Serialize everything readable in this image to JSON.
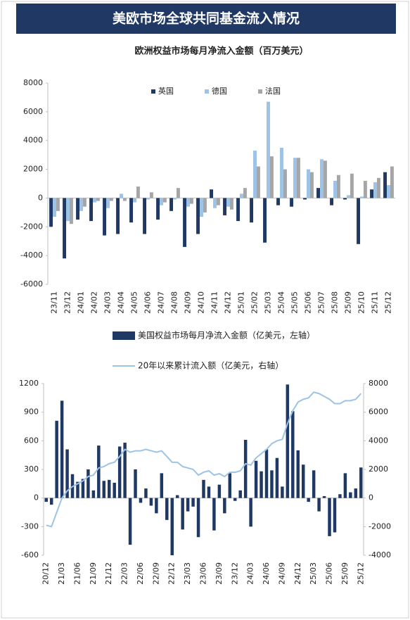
{
  "header": {
    "title": "美欧市场全球共同基金流入情况"
  },
  "chart_data": [
    {
      "type": "bar",
      "title": "欧洲权益市场每月净流入金额（百万美元）",
      "categories": [
        "23/11",
        "23/12",
        "24/01",
        "24/02",
        "24/03",
        "24/04",
        "24/05",
        "24/06",
        "24/07",
        "24/08",
        "24/09",
        "24/10",
        "24/11",
        "24/12",
        "25/01",
        "25/02",
        "25/03",
        "25/04",
        "25/05",
        "25/06",
        "25/07",
        "25/08",
        "25/09",
        "25/10",
        "25/11",
        "25/12"
      ],
      "series": [
        {
          "name": "英国",
          "color": "#1f3864",
          "values": [
            -2000,
            -4200,
            -1500,
            -1600,
            -2600,
            -2500,
            -1700,
            -2500,
            -1500,
            -900,
            -3400,
            -2500,
            600,
            -1200,
            -1600,
            -1700,
            -3100,
            -500,
            -600,
            -100,
            700,
            -500,
            -100,
            -3200,
            600,
            1800
          ]
        },
        {
          "name": "德国",
          "color": "#9dc3e6",
          "values": [
            -1300,
            -1600,
            -900,
            -300,
            -700,
            300,
            -300,
            -100,
            -500,
            -100,
            -600,
            -1300,
            -700,
            -600,
            300,
            3300,
            6700,
            3500,
            2800,
            2000,
            2700,
            1200,
            200,
            100,
            1100,
            900
          ]
        },
        {
          "name": "法国",
          "color": "#a6a6a6",
          "values": [
            -900,
            -1800,
            -600,
            -200,
            -200,
            -200,
            800,
            400,
            -300,
            700,
            -400,
            -1000,
            -500,
            -800,
            700,
            2200,
            2900,
            2000,
            2800,
            1800,
            2600,
            1600,
            1700,
            1200,
            1400,
            2200
          ]
        }
      ],
      "ylim": [
        -6000,
        8000
      ],
      "yticks": [
        -6000,
        -4000,
        -2000,
        0,
        2000,
        4000,
        6000,
        8000
      ],
      "legend": "top"
    },
    {
      "type": "bar_line",
      "categories": [
        "20/12",
        null,
        null,
        "21/03",
        null,
        null,
        "21/06",
        null,
        null,
        "21/09",
        null,
        null,
        "21/12",
        null,
        null,
        "22/03",
        null,
        null,
        "22/06",
        null,
        null,
        "22/09",
        null,
        null,
        "22/12",
        null,
        null,
        "23/03",
        null,
        null,
        "23/06",
        null,
        null,
        "23/09",
        null,
        null,
        "23/12",
        null,
        null,
        "24/03",
        null,
        null,
        "24/06",
        null,
        null,
        "24/09",
        null,
        null,
        "24/12",
        null,
        null,
        "25/03",
        null,
        null,
        "25/06",
        null,
        null,
        "25/09",
        null,
        null,
        "25/12"
      ],
      "series": [
        {
          "name": "美国权益市场每月净流入金额（亿美元，左轴）",
          "color": "#1f3864",
          "axis": "y",
          "values": [
            -40,
            -70,
            810,
            1020,
            510,
            250,
            170,
            200,
            300,
            80,
            550,
            180,
            190,
            160,
            540,
            580,
            -490,
            300,
            -50,
            100,
            -80,
            -160,
            260,
            -230,
            -600,
            30,
            -330,
            -140,
            -90,
            -410,
            190,
            120,
            -340,
            140,
            -160,
            260,
            -30,
            80,
            610,
            -300,
            390,
            280,
            510,
            290,
            420,
            120,
            1190,
            910,
            500,
            350,
            -40,
            290,
            -140,
            20,
            -400,
            -360,
            40,
            260,
            60,
            100,
            320
          ]
        },
        {
          "name": "20年以来累计流入额（亿美元，右轴）",
          "color": "#9dc3e6",
          "axis": "y2",
          "values": [
            -1900,
            -2000,
            -1000,
            0,
            500,
            800,
            1000,
            1200,
            1500,
            1600,
            2100,
            2200,
            2400,
            2500,
            2900,
            3400,
            3200,
            3300,
            3300,
            3400,
            3300,
            3200,
            3300,
            2900,
            2500,
            2500,
            2200,
            2100,
            2000,
            1600,
            1800,
            1900,
            1600,
            1700,
            1500,
            1800,
            1800,
            1900,
            2400,
            2300,
            2800,
            3100,
            3400,
            3800,
            4000,
            4100,
            5200,
            6100,
            6700,
            6900,
            7000,
            7400,
            7300,
            7100,
            6900,
            6600,
            6600,
            6800,
            6800,
            6900,
            7300
          ]
        }
      ],
      "ylim": [
        -600,
        1200
      ],
      "yticks": [
        -600,
        -300,
        0,
        300,
        600,
        900,
        1200
      ],
      "y2lim": [
        -4000,
        8000
      ],
      "y2ticks": [
        -4000,
        -2000,
        0,
        2000,
        4000,
        6000,
        8000
      ],
      "legend": "top"
    }
  ]
}
